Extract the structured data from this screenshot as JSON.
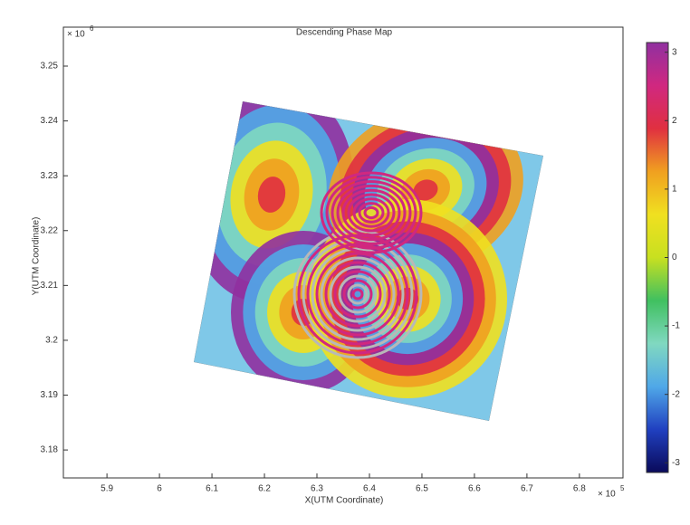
{
  "chart_data": {
    "type": "image",
    "title": "Descending Phase Map",
    "xlabel": "X(UTM Coordinate)",
    "ylabel": "Y(UTM Coordinate)",
    "x_multiplier": "× 10",
    "x_exponent": "5",
    "y_multiplier": "× 10",
    "y_exponent": "6",
    "xlim": [
      5.817,
      6.883
    ],
    "xticks": [
      5.9,
      6,
      6.1,
      6.2,
      6.3,
      6.4,
      6.5,
      6.6,
      6.7,
      6.8
    ],
    "ylim": [
      3.1749,
      3.2571
    ],
    "yticks": [
      3.18,
      3.19,
      3.2,
      3.21,
      3.22,
      3.23,
      3.24,
      3.25
    ],
    "clim": [
      -3.1416,
      3.1416
    ],
    "cticks": [
      -3,
      -2,
      -1,
      0,
      1,
      2,
      3
    ],
    "colormap": [
      "#0a0a5a",
      "#2040c0",
      "#50a8e8",
      "#80d8c0",
      "#40c060",
      "#c8e020",
      "#f0e020",
      "#f0a020",
      "#e03040",
      "#d02880",
      "#9030a0"
    ]
  }
}
